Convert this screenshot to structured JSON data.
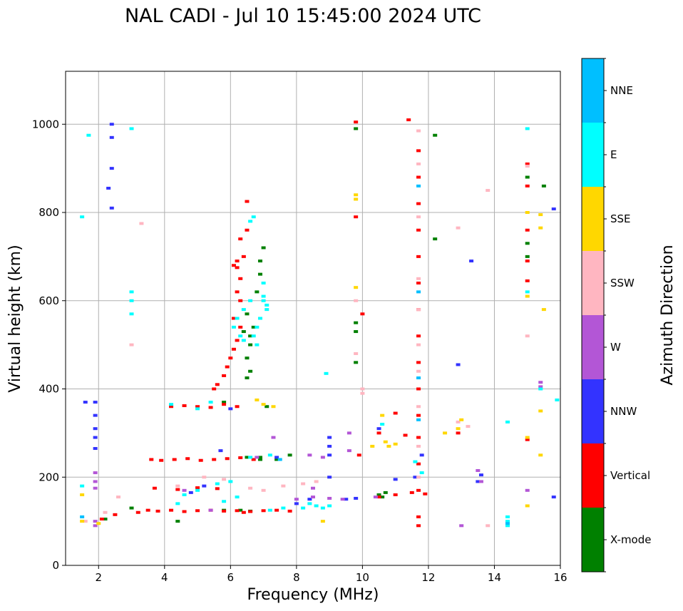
{
  "chart_data": {
    "type": "scatter",
    "title": "NAL CADI - Jul 10 15:45:00 2024 UTC",
    "xlabel": "Frequency (MHz)",
    "ylabel": "Virtual height (km)",
    "xlim": [
      1,
      16
    ],
    "ylim": [
      0,
      1120
    ],
    "xticks": [
      2,
      4,
      6,
      8,
      10,
      12,
      14,
      16
    ],
    "yticks": [
      0,
      200,
      400,
      600,
      800,
      1000
    ],
    "grid": true,
    "colorbar": {
      "title": "Azimuth Direction",
      "categories": [
        {
          "name": "X-mode",
          "color": "#008000"
        },
        {
          "name": "Vertical",
          "color": "#ff0000"
        },
        {
          "name": "NNW",
          "color": "#3333ff"
        },
        {
          "name": "W",
          "color": "#b356d6"
        },
        {
          "name": "SSW",
          "color": "#ffb6c1"
        },
        {
          "name": "SSE",
          "color": "#ffd700"
        },
        {
          "name": "E",
          "color": "#00ffff"
        },
        {
          "name": "NNE",
          "color": "#00bfff"
        }
      ]
    },
    "series": [
      {
        "name": "X-mode",
        "points": [
          [
            6.6,
            520
          ],
          [
            6.6,
            500
          ],
          [
            6.5,
            470
          ],
          [
            6.6,
            440
          ],
          [
            6.5,
            425
          ],
          [
            6.7,
            540
          ],
          [
            6.8,
            620
          ],
          [
            6.9,
            660
          ],
          [
            7.0,
            720
          ],
          [
            6.9,
            690
          ],
          [
            6.5,
            570
          ],
          [
            6.4,
            530
          ],
          [
            9.8,
            550
          ],
          [
            9.8,
            530
          ],
          [
            9.8,
            990
          ],
          [
            9.8,
            460
          ],
          [
            10.7,
            165
          ],
          [
            10.5,
            160
          ],
          [
            10.6,
            155
          ],
          [
            12.2,
            740
          ],
          [
            12.2,
            975
          ],
          [
            15.0,
            880
          ],
          [
            15.0,
            730
          ],
          [
            15.0,
            700
          ],
          [
            15.5,
            860
          ],
          [
            7.8,
            250
          ],
          [
            7.4,
            240
          ],
          [
            6.9,
            245
          ],
          [
            6.5,
            245
          ],
          [
            7.1,
            360
          ],
          [
            5.8,
            370
          ],
          [
            6.3,
            125
          ],
          [
            5.8,
            125
          ],
          [
            6.6,
            123
          ],
          [
            6.9,
            240
          ],
          [
            3.0,
            130
          ],
          [
            2.2,
            105
          ],
          [
            4.4,
            100
          ]
        ]
      },
      {
        "name": "Vertical",
        "points": [
          [
            3.5,
            125
          ],
          [
            3.8,
            123
          ],
          [
            4.2,
            125
          ],
          [
            4.6,
            122
          ],
          [
            5.0,
            124
          ],
          [
            5.4,
            125
          ],
          [
            5.8,
            123
          ],
          [
            6.2,
            124
          ],
          [
            6.6,
            122
          ],
          [
            7.0,
            124
          ],
          [
            7.4,
            125
          ],
          [
            7.8,
            123
          ],
          [
            3.6,
            240
          ],
          [
            3.9,
            238
          ],
          [
            4.3,
            240
          ],
          [
            4.7,
            242
          ],
          [
            5.1,
            238
          ],
          [
            5.5,
            240
          ],
          [
            5.9,
            242
          ],
          [
            6.3,
            244
          ],
          [
            6.7,
            240
          ],
          [
            4.2,
            360
          ],
          [
            4.6,
            362
          ],
          [
            5.0,
            360
          ],
          [
            5.4,
            358
          ],
          [
            5.8,
            365
          ],
          [
            6.2,
            360
          ],
          [
            5.5,
            400
          ],
          [
            5.6,
            410
          ],
          [
            5.8,
            430
          ],
          [
            5.9,
            450
          ],
          [
            6.0,
            470
          ],
          [
            6.1,
            490
          ],
          [
            6.2,
            510
          ],
          [
            6.3,
            540
          ],
          [
            6.1,
            560
          ],
          [
            6.3,
            600
          ],
          [
            6.2,
            620
          ],
          [
            6.3,
            650
          ],
          [
            6.2,
            690
          ],
          [
            6.4,
            700
          ],
          [
            6.3,
            740
          ],
          [
            6.5,
            760
          ],
          [
            6.5,
            825
          ],
          [
            6.2,
            675
          ],
          [
            6.1,
            680
          ],
          [
            11.4,
            1010
          ],
          [
            11.7,
            940
          ],
          [
            11.7,
            880
          ],
          [
            11.7,
            820
          ],
          [
            11.7,
            760
          ],
          [
            11.7,
            700
          ],
          [
            11.7,
            640
          ],
          [
            11.7,
            580
          ],
          [
            11.7,
            520
          ],
          [
            11.7,
            460
          ],
          [
            11.7,
            400
          ],
          [
            11.7,
            340
          ],
          [
            11.7,
            290
          ],
          [
            11.7,
            230
          ],
          [
            11.7,
            170
          ],
          [
            11.7,
            110
          ],
          [
            11.7,
            90
          ],
          [
            9.8,
            790
          ],
          [
            9.8,
            1005
          ],
          [
            10.0,
            570
          ],
          [
            10.5,
            155
          ],
          [
            11.0,
            160
          ],
          [
            11.5,
            165
          ],
          [
            11.9,
            162
          ],
          [
            12.9,
            300
          ],
          [
            15.0,
            910
          ],
          [
            15.0,
            860
          ],
          [
            15.0,
            760
          ],
          [
            15.0,
            690
          ],
          [
            15.0,
            645
          ],
          [
            15.0,
            285
          ],
          [
            2.1,
            105
          ],
          [
            2.5,
            115
          ],
          [
            3.2,
            120
          ],
          [
            3.7,
            175
          ],
          [
            4.4,
            172
          ],
          [
            5.0,
            176
          ],
          [
            5.6,
            174
          ],
          [
            6.4,
            120
          ],
          [
            11.3,
            295
          ],
          [
            11.0,
            345
          ],
          [
            10.5,
            300
          ],
          [
            9.9,
            250
          ]
        ]
      },
      {
        "name": "NNW",
        "points": [
          [
            1.9,
            370
          ],
          [
            1.9,
            340
          ],
          [
            1.9,
            310
          ],
          [
            1.9,
            290
          ],
          [
            1.9,
            265
          ],
          [
            1.6,
            370
          ],
          [
            2.4,
            1000
          ],
          [
            2.4,
            970
          ],
          [
            2.4,
            900
          ],
          [
            2.3,
            855
          ],
          [
            2.4,
            810
          ],
          [
            9.0,
            290
          ],
          [
            9.0,
            270
          ],
          [
            9.0,
            250
          ],
          [
            9.0,
            200
          ],
          [
            9.5,
            150
          ],
          [
            9.8,
            152
          ],
          [
            13.3,
            690
          ],
          [
            12.9,
            455
          ],
          [
            13.5,
            190
          ],
          [
            13.6,
            205
          ],
          [
            15.8,
            808
          ],
          [
            15.8,
            155
          ],
          [
            11.0,
            195
          ],
          [
            11.6,
            200
          ],
          [
            11.8,
            250
          ],
          [
            10.5,
            310
          ],
          [
            8.0,
            140
          ],
          [
            8.4,
            150
          ],
          [
            7.4,
            245
          ],
          [
            6.0,
            355
          ],
          [
            5.2,
            180
          ],
          [
            4.8,
            165
          ],
          [
            5.7,
            260
          ]
        ]
      },
      {
        "name": "W",
        "points": [
          [
            1.9,
            210
          ],
          [
            1.9,
            190
          ],
          [
            1.9,
            175
          ],
          [
            1.9,
            100
          ],
          [
            1.9,
            90
          ],
          [
            8.0,
            150
          ],
          [
            8.5,
            155
          ],
          [
            9.0,
            152
          ],
          [
            9.4,
            150
          ],
          [
            8.4,
            250
          ],
          [
            8.8,
            245
          ],
          [
            9.6,
            300
          ],
          [
            9.6,
            260
          ],
          [
            13.5,
            215
          ],
          [
            13.6,
            190
          ],
          [
            13.0,
            90
          ],
          [
            15.0,
            170
          ],
          [
            15.4,
            415
          ],
          [
            15.4,
            405
          ],
          [
            7.3,
            290
          ],
          [
            6.8,
            245
          ],
          [
            5.4,
            125
          ],
          [
            4.6,
            170
          ],
          [
            8.5,
            175
          ],
          [
            10.4,
            155
          ]
        ]
      },
      {
        "name": "SSW",
        "points": [
          [
            3.0,
            500
          ],
          [
            3.3,
            775
          ],
          [
            12.9,
            765
          ],
          [
            13.8,
            850
          ],
          [
            13.8,
            90
          ],
          [
            15.0,
            520
          ],
          [
            15.0,
            905
          ],
          [
            11.7,
            985
          ],
          [
            11.7,
            910
          ],
          [
            11.7,
            790
          ],
          [
            11.7,
            650
          ],
          [
            11.7,
            580
          ],
          [
            11.7,
            500
          ],
          [
            11.7,
            440
          ],
          [
            11.7,
            360
          ],
          [
            11.7,
            270
          ],
          [
            11.7,
            200
          ],
          [
            10.0,
            400
          ],
          [
            10.0,
            390
          ],
          [
            9.8,
            600
          ],
          [
            9.8,
            480
          ],
          [
            8.2,
            185
          ],
          [
            8.6,
            190
          ],
          [
            7.6,
            180
          ],
          [
            7.0,
            170
          ],
          [
            6.6,
            175
          ],
          [
            5.8,
            195
          ],
          [
            5.2,
            200
          ],
          [
            4.4,
            180
          ],
          [
            2.6,
            155
          ],
          [
            2.2,
            120
          ],
          [
            1.6,
            100
          ],
          [
            12.9,
            325
          ],
          [
            13.2,
            315
          ]
        ]
      },
      {
        "name": "SSE",
        "points": [
          [
            9.8,
            630
          ],
          [
            9.8,
            840
          ],
          [
            9.8,
            830
          ],
          [
            12.5,
            300
          ],
          [
            12.9,
            310
          ],
          [
            13.0,
            330
          ],
          [
            10.6,
            340
          ],
          [
            10.7,
            280
          ],
          [
            10.8,
            270
          ],
          [
            10.3,
            270
          ],
          [
            11.0,
            275
          ],
          [
            15.0,
            800
          ],
          [
            15.0,
            610
          ],
          [
            15.0,
            290
          ],
          [
            15.0,
            135
          ],
          [
            15.4,
            795
          ],
          [
            15.4,
            765
          ],
          [
            15.5,
            580
          ],
          [
            15.4,
            350
          ],
          [
            15.4,
            250
          ],
          [
            7.0,
            365
          ],
          [
            7.3,
            360
          ],
          [
            6.8,
            375
          ],
          [
            8.8,
            100
          ],
          [
            1.5,
            100
          ],
          [
            1.5,
            160
          ],
          [
            2.0,
            95
          ]
        ]
      },
      {
        "name": "E",
        "points": [
          [
            6.7,
            790
          ],
          [
            6.6,
            780
          ],
          [
            7.0,
            640
          ],
          [
            7.0,
            610
          ],
          [
            7.1,
            580
          ],
          [
            6.9,
            560
          ],
          [
            6.8,
            540
          ],
          [
            6.7,
            520
          ],
          [
            6.8,
            500
          ],
          [
            6.6,
            600
          ],
          [
            6.4,
            580
          ],
          [
            6.2,
            560
          ],
          [
            6.1,
            540
          ],
          [
            6.3,
            520
          ],
          [
            6.4,
            510
          ],
          [
            7.0,
            600
          ],
          [
            7.1,
            590
          ],
          [
            3.0,
            620
          ],
          [
            3.0,
            600
          ],
          [
            3.0,
            570
          ],
          [
            3.0,
            990
          ],
          [
            1.7,
            975
          ],
          [
            1.5,
            790
          ],
          [
            8.9,
            435
          ],
          [
            14.4,
            110
          ],
          [
            14.4,
            100
          ],
          [
            14.4,
            90
          ],
          [
            14.4,
            325
          ],
          [
            15.0,
            990
          ],
          [
            15.0,
            620
          ],
          [
            15.4,
            400
          ],
          [
            15.9,
            375
          ],
          [
            8.2,
            130
          ],
          [
            8.4,
            140
          ],
          [
            8.6,
            135
          ],
          [
            8.8,
            130
          ],
          [
            9.0,
            135
          ],
          [
            7.6,
            130
          ],
          [
            7.2,
            125
          ],
          [
            6.0,
            190
          ],
          [
            5.6,
            185
          ],
          [
            5.0,
            170
          ],
          [
            4.6,
            160
          ],
          [
            4.4,
            140
          ],
          [
            5.8,
            145
          ],
          [
            6.2,
            155
          ],
          [
            4.2,
            365
          ],
          [
            5.0,
            355
          ],
          [
            5.4,
            370
          ],
          [
            6.6,
            245
          ],
          [
            7.2,
            250
          ],
          [
            11.6,
            235
          ],
          [
            11.8,
            210
          ],
          [
            10.6,
            320
          ],
          [
            1.5,
            180
          ]
        ]
      },
      {
        "name": "NNE",
        "points": [
          [
            1.5,
            110
          ],
          [
            14.4,
            95
          ],
          [
            11.7,
            860
          ],
          [
            11.7,
            620
          ],
          [
            11.7,
            425
          ],
          [
            11.7,
            330
          ],
          [
            7.5,
            240
          ]
        ]
      }
    ]
  }
}
